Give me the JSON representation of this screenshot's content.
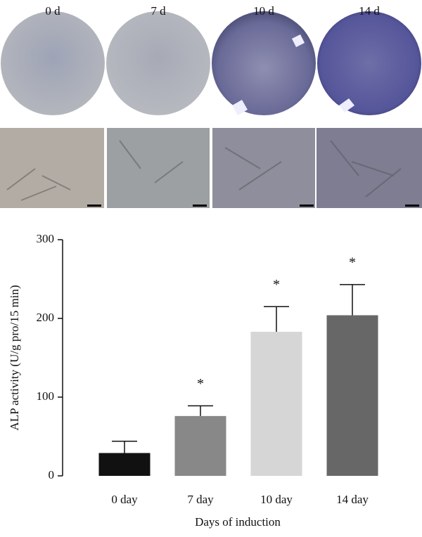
{
  "image_labels": [
    "0 d",
    "7 d",
    "10 d",
    "14 d"
  ],
  "chart_data": {
    "type": "bar",
    "ylabel": "ALP activity (U/g pro/15 min)",
    "xlabel": "Days of induction",
    "categories": [
      "0 day",
      "7 day",
      "10 day",
      "14 day"
    ],
    "values": [
      29,
      76,
      183,
      204
    ],
    "errors": [
      15,
      13,
      32,
      39
    ],
    "significance": [
      null,
      "*",
      "*",
      "*"
    ],
    "colors": [
      "#111111",
      "#888888",
      "#d6d6d6",
      "#676767"
    ],
    "ylim": [
      0,
      300
    ],
    "yticks": [
      0,
      100,
      200,
      300
    ],
    "grid": false
  }
}
